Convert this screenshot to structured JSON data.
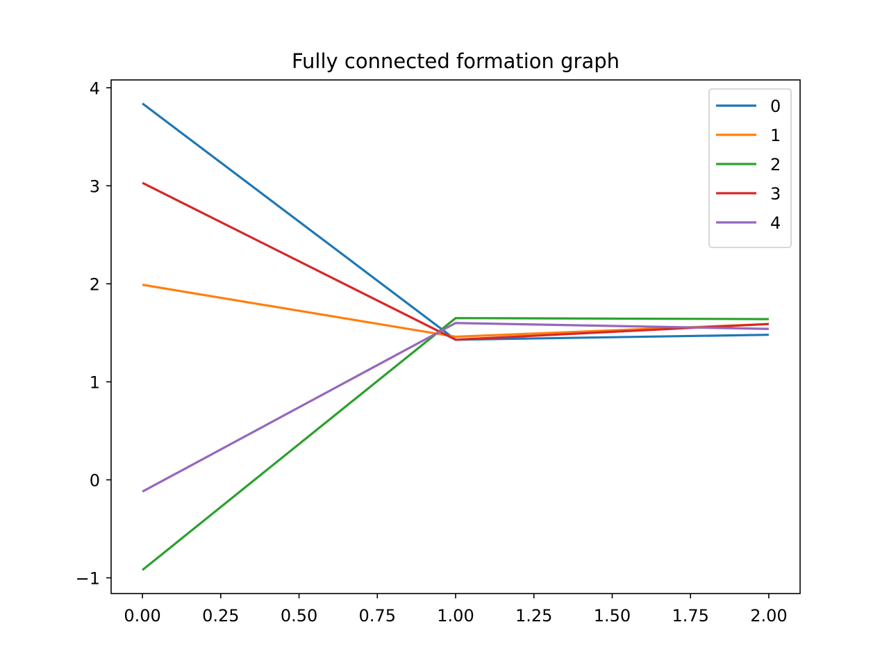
{
  "chart_data": {
    "type": "line",
    "title": "Fully connected formation graph",
    "xlabel": "",
    "ylabel": "",
    "x": [
      0,
      1,
      2
    ],
    "xlim": [
      -0.1,
      2.1
    ],
    "ylim": [
      -1.16,
      4.08
    ],
    "xticks": [
      0.0,
      0.25,
      0.5,
      0.75,
      1.0,
      1.25,
      1.5,
      1.75,
      2.0
    ],
    "xtick_labels": [
      "0.00",
      "0.25",
      "0.50",
      "0.75",
      "1.00",
      "1.25",
      "1.50",
      "1.75",
      "2.00"
    ],
    "yticks": [
      -1,
      0,
      1,
      2,
      3,
      4
    ],
    "ytick_labels": [
      "−1",
      "0",
      "1",
      "2",
      "3",
      "4"
    ],
    "grid": false,
    "legend_position": "top-right",
    "series": [
      {
        "name": "0",
        "color": "#1f77b4",
        "values": [
          3.84,
          1.43,
          1.48
        ]
      },
      {
        "name": "1",
        "color": "#ff7f0e",
        "values": [
          1.99,
          1.46,
          1.59
        ]
      },
      {
        "name": "2",
        "color": "#2ca02c",
        "values": [
          -0.92,
          1.65,
          1.64
        ]
      },
      {
        "name": "3",
        "color": "#d62728",
        "values": [
          3.03,
          1.43,
          1.59
        ]
      },
      {
        "name": "4",
        "color": "#9467bd",
        "values": [
          -0.12,
          1.6,
          1.54
        ]
      }
    ]
  }
}
